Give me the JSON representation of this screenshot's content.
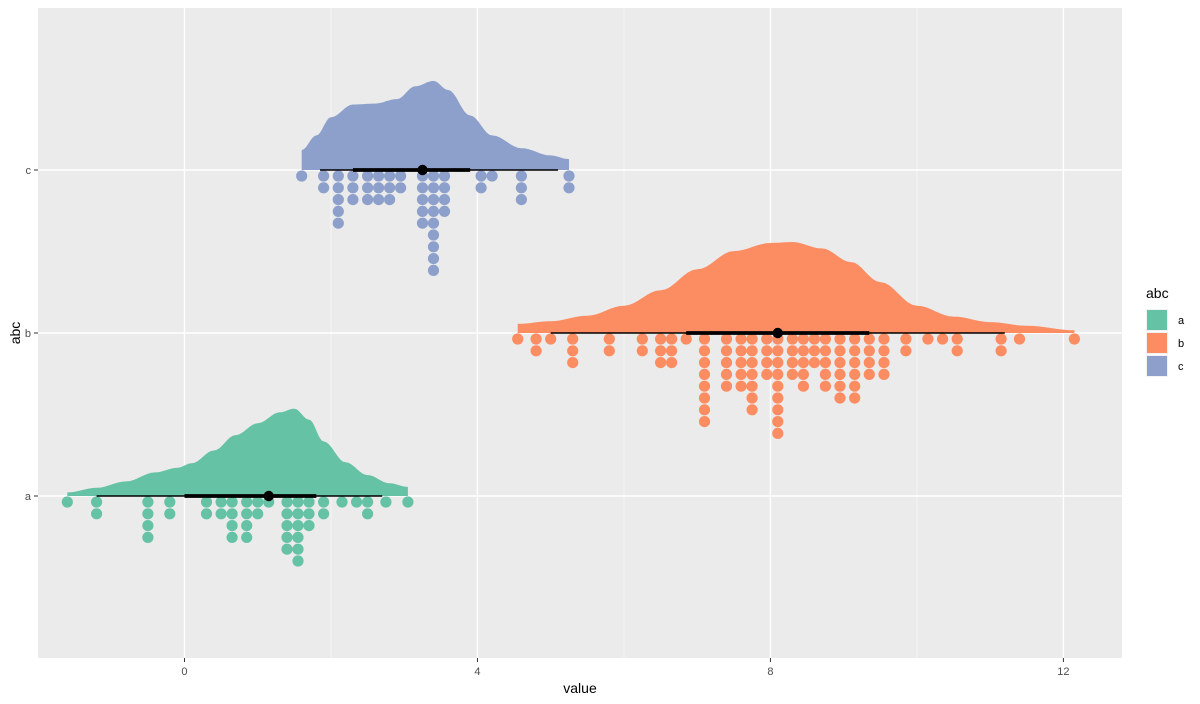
{
  "chart_data": {
    "type": "raincloud",
    "title": "",
    "xlabel": "value",
    "ylabel": "abc",
    "xlim": [
      -2.0,
      12.8
    ],
    "x_ticks": [
      0,
      4,
      8,
      12
    ],
    "x_tick_labels": [
      "0",
      "4",
      "8",
      "12"
    ],
    "categories": [
      "a",
      "b",
      "c"
    ],
    "grid": true,
    "legend": {
      "title": "abc",
      "position": "right",
      "entries": [
        {
          "label": "a",
          "color": "#66C2A5"
        },
        {
          "label": "b",
          "color": "#FC8D62"
        },
        {
          "label": "c",
          "color": "#8DA0CB"
        }
      ]
    },
    "series": [
      {
        "name": "a",
        "color": "#66C2A5",
        "points": [
          -1.6,
          -1.2,
          -1.2,
          -0.5,
          -0.5,
          -0.5,
          -0.5,
          -0.2,
          -0.2,
          0.3,
          0.3,
          0.5,
          0.5,
          0.65,
          0.65,
          0.65,
          0.65,
          0.85,
          0.85,
          0.85,
          0.85,
          1.0,
          1.0,
          1.15,
          1.4,
          1.4,
          1.4,
          1.4,
          1.4,
          1.55,
          1.55,
          1.55,
          1.55,
          1.55,
          1.55,
          1.7,
          1.7,
          1.7,
          1.9,
          1.9,
          2.15,
          2.35,
          2.5,
          2.5,
          2.75,
          3.05
        ],
        "median": 1.15,
        "interval_50": [
          0.0,
          1.8
        ],
        "interval_95": [
          -1.2,
          2.7
        ],
        "density": [
          [
            -1.6,
            0.04
          ],
          [
            -1.2,
            0.09
          ],
          [
            -0.8,
            0.16
          ],
          [
            -0.4,
            0.26
          ],
          [
            -0.1,
            0.31
          ],
          [
            0.1,
            0.36
          ],
          [
            0.4,
            0.5
          ],
          [
            0.7,
            0.67
          ],
          [
            1.0,
            0.8
          ],
          [
            1.3,
            0.92
          ],
          [
            1.5,
            0.96
          ],
          [
            1.7,
            0.84
          ],
          [
            1.9,
            0.6
          ],
          [
            2.2,
            0.37
          ],
          [
            2.5,
            0.23
          ],
          [
            2.8,
            0.14
          ],
          [
            3.05,
            0.1
          ]
        ]
      },
      {
        "name": "b",
        "color": "#FC8D62",
        "points": [
          4.55,
          4.8,
          4.8,
          5.0,
          5.3,
          5.3,
          5.3,
          5.8,
          5.8,
          6.25,
          6.25,
          6.5,
          6.5,
          6.5,
          6.65,
          6.65,
          6.65,
          6.85,
          7.1,
          7.1,
          7.1,
          7.1,
          7.1,
          7.1,
          7.1,
          7.1,
          7.4,
          7.4,
          7.4,
          7.4,
          7.4,
          7.6,
          7.6,
          7.6,
          7.6,
          7.6,
          7.75,
          7.75,
          7.75,
          7.75,
          7.75,
          7.75,
          7.75,
          7.95,
          7.95,
          7.95,
          7.95,
          8.1,
          8.1,
          8.1,
          8.1,
          8.1,
          8.1,
          8.1,
          8.1,
          8.1,
          8.3,
          8.3,
          8.3,
          8.3,
          8.45,
          8.45,
          8.45,
          8.45,
          8.45,
          8.6,
          8.6,
          8.6,
          8.75,
          8.75,
          8.75,
          8.75,
          8.75,
          8.95,
          8.95,
          8.95,
          8.95,
          8.95,
          8.95,
          9.15,
          9.15,
          9.15,
          9.15,
          9.15,
          9.15,
          9.35,
          9.35,
          9.35,
          9.35,
          9.55,
          9.55,
          9.55,
          9.55,
          9.85,
          9.85,
          10.15,
          10.35,
          10.55,
          10.55,
          11.15,
          11.15,
          11.4,
          12.15
        ],
        "median": 8.1,
        "interval_50": [
          6.85,
          9.35
        ],
        "interval_95": [
          5.0,
          11.2
        ],
        "density": [
          [
            4.55,
            0.1
          ],
          [
            5.0,
            0.13
          ],
          [
            5.5,
            0.19
          ],
          [
            6.0,
            0.3
          ],
          [
            6.5,
            0.47
          ],
          [
            7.0,
            0.7
          ],
          [
            7.5,
            0.9
          ],
          [
            8.0,
            0.99
          ],
          [
            8.3,
            1.0
          ],
          [
            8.7,
            0.93
          ],
          [
            9.1,
            0.78
          ],
          [
            9.5,
            0.56
          ],
          [
            10.0,
            0.3
          ],
          [
            10.5,
            0.18
          ],
          [
            11.0,
            0.12
          ],
          [
            11.5,
            0.08
          ],
          [
            12.15,
            0.03
          ]
        ]
      },
      {
        "name": "c",
        "color": "#8DA0CB",
        "points": [
          1.6,
          1.9,
          1.9,
          2.1,
          2.1,
          2.1,
          2.1,
          2.1,
          2.3,
          2.3,
          2.3,
          2.5,
          2.5,
          2.5,
          2.65,
          2.65,
          2.65,
          2.8,
          2.8,
          2.8,
          2.95,
          2.95,
          3.25,
          3.25,
          3.25,
          3.25,
          3.25,
          3.4,
          3.4,
          3.4,
          3.4,
          3.4,
          3.4,
          3.4,
          3.4,
          3.4,
          3.55,
          3.55,
          3.55,
          3.55,
          4.05,
          4.05,
          4.2,
          4.6,
          4.6,
          4.6,
          5.25,
          5.25
        ],
        "median": 3.25,
        "interval_50": [
          2.3,
          3.9
        ],
        "interval_95": [
          1.85,
          5.1
        ],
        "density": [
          [
            1.6,
            0.22
          ],
          [
            1.8,
            0.38
          ],
          [
            2.0,
            0.58
          ],
          [
            2.3,
            0.72
          ],
          [
            2.6,
            0.73
          ],
          [
            2.9,
            0.78
          ],
          [
            3.15,
            0.92
          ],
          [
            3.4,
            0.98
          ],
          [
            3.6,
            0.88
          ],
          [
            3.9,
            0.6
          ],
          [
            4.2,
            0.38
          ],
          [
            4.6,
            0.24
          ],
          [
            5.0,
            0.16
          ],
          [
            5.25,
            0.12
          ]
        ]
      }
    ]
  }
}
